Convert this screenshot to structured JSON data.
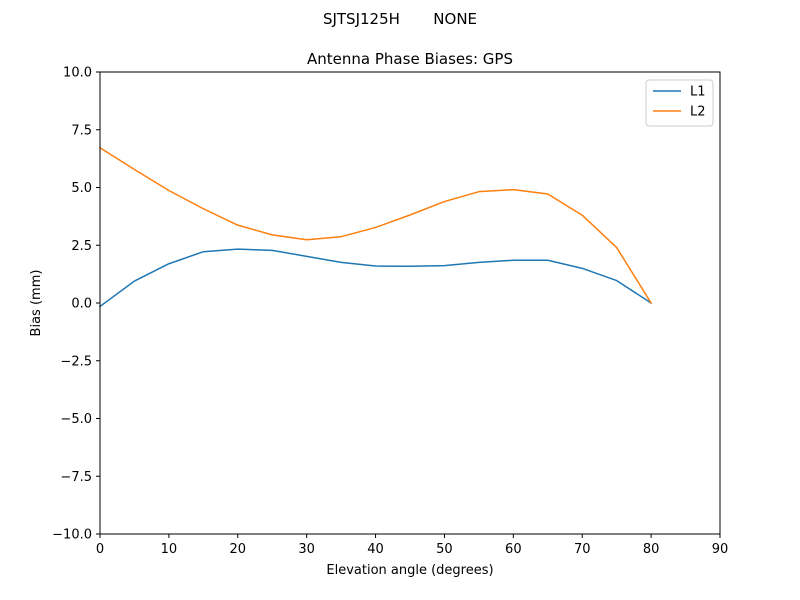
{
  "suptitle": "SJTSJ125H       NONE",
  "chart_data": {
    "type": "line",
    "title": "Antenna Phase Biases: GPS",
    "xlabel": "Elevation angle (degrees)",
    "ylabel": "Bias (mm)",
    "xlim": [
      0,
      90
    ],
    "ylim": [
      -10,
      10
    ],
    "x_ticks": [
      "0",
      "10",
      "20",
      "30",
      "40",
      "50",
      "60",
      "70",
      "80",
      "90"
    ],
    "y_ticks": [
      "10.0",
      "7.5",
      "5.0",
      "2.5",
      "0.0",
      "−2.5",
      "−5.0",
      "−7.5",
      "−10.0"
    ],
    "x": [
      0,
      5,
      10,
      15,
      20,
      25,
      30,
      35,
      40,
      45,
      50,
      55,
      60,
      65,
      70,
      75,
      80
    ],
    "series": [
      {
        "name": "L1",
        "color": "#1f77b4",
        "values": [
          -0.15,
          0.95,
          1.7,
          2.22,
          2.33,
          2.28,
          2.02,
          1.76,
          1.6,
          1.59,
          1.62,
          1.76,
          1.85,
          1.85,
          1.5,
          0.97,
          0.0
        ]
      },
      {
        "name": "L2",
        "color": "#ff7f0e",
        "values": [
          6.72,
          5.78,
          4.87,
          4.08,
          3.37,
          2.95,
          2.74,
          2.87,
          3.27,
          3.81,
          4.39,
          4.82,
          4.91,
          4.72,
          3.8,
          2.4,
          0.0
        ]
      }
    ],
    "grid": false,
    "legend": "top-right"
  }
}
